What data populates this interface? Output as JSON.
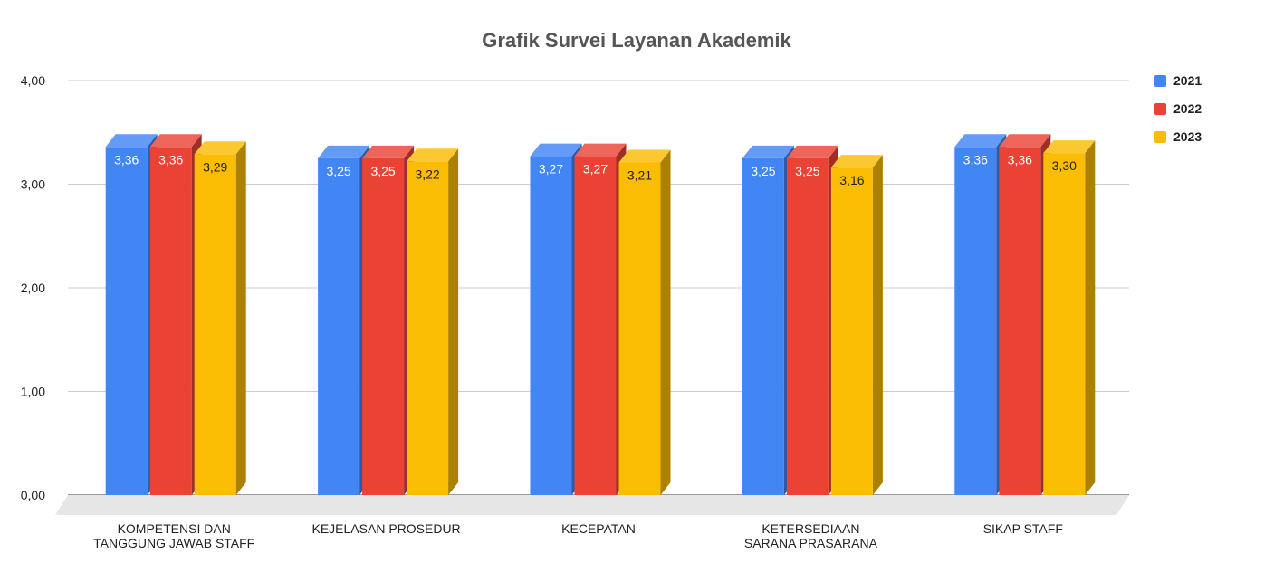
{
  "chart_data": {
    "type": "bar",
    "title": "Grafik Survei Layanan Akademik",
    "xlabel": "",
    "ylabel": "",
    "ylim": [
      0,
      4
    ],
    "yticks": [
      "0,00",
      "1,00",
      "2,00",
      "3,00",
      "4,00"
    ],
    "ytick_values": [
      0,
      1,
      2,
      3,
      4
    ],
    "grid": true,
    "legend_position": "top-right",
    "categories": [
      [
        "KOMPETENSI DAN",
        "TANGGUNG JAWAB STAFF"
      ],
      [
        "KEJELASAN PROSEDUR"
      ],
      [
        "KECEPATAN"
      ],
      [
        "KETERSEDIAAN",
        "SARANA PRASARANA"
      ],
      [
        "SIKAP STAFF"
      ]
    ],
    "series": [
      {
        "name": "2021",
        "color": "#4285f4",
        "values": [
          3.36,
          3.25,
          3.27,
          3.25,
          3.36
        ],
        "labels": [
          "3,36",
          "3,25",
          "3,27",
          "3,25",
          "3,36"
        ]
      },
      {
        "name": "2022",
        "color": "#ea4335",
        "values": [
          3.36,
          3.25,
          3.27,
          3.25,
          3.36
        ],
        "labels": [
          "3,36",
          "3,25",
          "3,27",
          "3,25",
          "3,36"
        ]
      },
      {
        "name": "2023",
        "color": "#fbbc04",
        "values": [
          3.29,
          3.22,
          3.21,
          3.16,
          3.3
        ],
        "labels": [
          "3,29",
          "3,22",
          "3,21",
          "3,16",
          "3,30"
        ]
      }
    ]
  }
}
